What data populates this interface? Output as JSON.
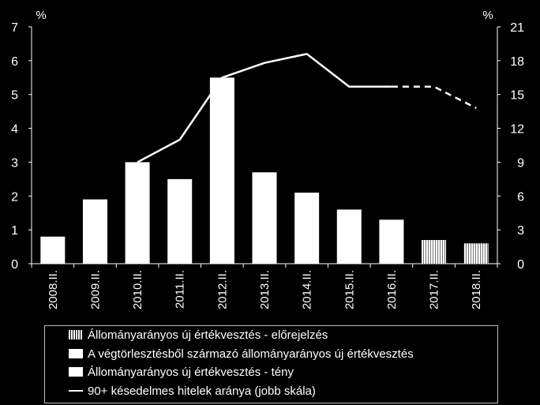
{
  "chart_data": {
    "type": "bar",
    "left_axis_unit": "%",
    "right_axis_unit": "%",
    "categories": [
      "2008.II.",
      "2009.II.",
      "2010.II.",
      "2011.II.",
      "2012.II.",
      "2013.II.",
      "2014.II.",
      "2015.II.",
      "2016.II.",
      "2017.II.",
      "2018.II."
    ],
    "y_left": {
      "min": 0,
      "max": 7,
      "ticks": [
        0,
        1,
        2,
        3,
        4,
        5,
        6,
        7
      ]
    },
    "y_right": {
      "min": 0,
      "max": 21,
      "ticks": [
        0,
        3,
        6,
        9,
        12,
        15,
        18,
        21
      ]
    },
    "series": [
      {
        "name": "Állományarányos új értékvesztés - előrejelzés",
        "type": "bar",
        "axis": "left",
        "values": [
          null,
          null,
          null,
          null,
          null,
          null,
          null,
          null,
          null,
          0.7,
          0.6
        ]
      },
      {
        "name": "A végtörlesztésből származó állományarányos új értékvesztés",
        "type": "bar",
        "axis": "left",
        "values": [
          0,
          0,
          0,
          0,
          0,
          0,
          0,
          0,
          0,
          0,
          0
        ]
      },
      {
        "name": "Állományarányos új értékvesztés - tény",
        "type": "bar",
        "axis": "left",
        "values": [
          0.8,
          1.9,
          3.0,
          2.5,
          5.5,
          2.7,
          2.1,
          1.6,
          1.3,
          null,
          null
        ]
      },
      {
        "name": "90+ késedelmes hitelek aránya (jobb skála)",
        "type": "line",
        "axis": "right",
        "values": [
          null,
          null,
          9.0,
          11.0,
          16.5,
          17.8,
          18.6,
          15.7,
          15.7,
          15.7,
          13.8
        ],
        "forecast_from_index": 8
      }
    ],
    "legend_position": "bottom",
    "grid": false
  },
  "colors": {
    "background": "#000000",
    "bars": "#ffffff",
    "line": "#ffffff",
    "text": "#ffffff"
  }
}
